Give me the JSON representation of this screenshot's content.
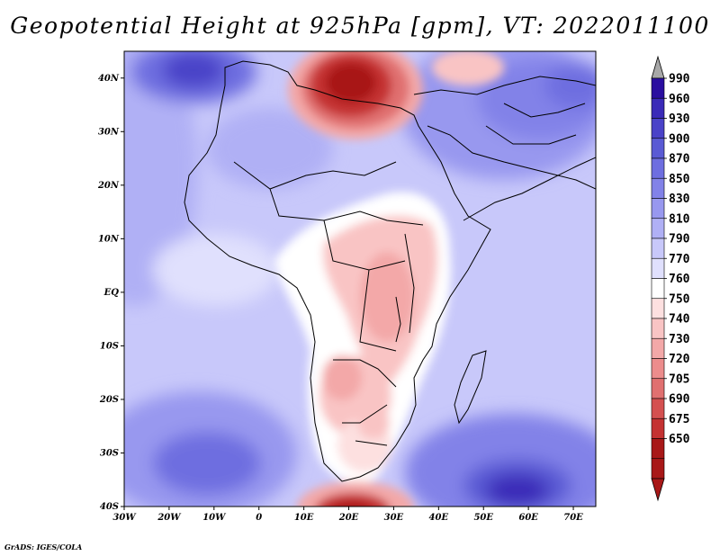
{
  "title": "Geopotential Height at 925hPa [gpm], VT: 2022011100",
  "credit": "GrADS: IGES/COLA",
  "map": {
    "lon_range": [
      -30,
      75
    ],
    "lat_range": [
      -40,
      45
    ],
    "x_ticks": [
      "30W",
      "20W",
      "10W",
      "0",
      "10E",
      "20E",
      "30E",
      "40E",
      "50E",
      "60E",
      "70E"
    ],
    "y_ticks": [
      "40N",
      "30N",
      "20N",
      "10N",
      "EQ",
      "10S",
      "20S",
      "30S",
      "40S"
    ]
  },
  "colorbar": {
    "levels": [
      "990",
      "960",
      "930",
      "900",
      "870",
      "850",
      "830",
      "810",
      "790",
      "770",
      "760",
      "750",
      "740",
      "730",
      "720",
      "705",
      "690",
      "675",
      "650"
    ],
    "colors": [
      "#2a0ea0",
      "#3a2ab8",
      "#4a42c8",
      "#5a5ad4",
      "#6e6ee0",
      "#8282e8",
      "#9898ef",
      "#b0b0f5",
      "#c8c8fa",
      "#e0e0fd",
      "#ffffff",
      "#fde0e0",
      "#f9c4c4",
      "#f3a8a8",
      "#ec8c8c",
      "#e07070",
      "#d45050",
      "#c43232",
      "#a81818",
      "#a81818"
    ],
    "top_triangle_color": "#a8a8a8",
    "bottom_triangle_color": "#a81818"
  }
}
